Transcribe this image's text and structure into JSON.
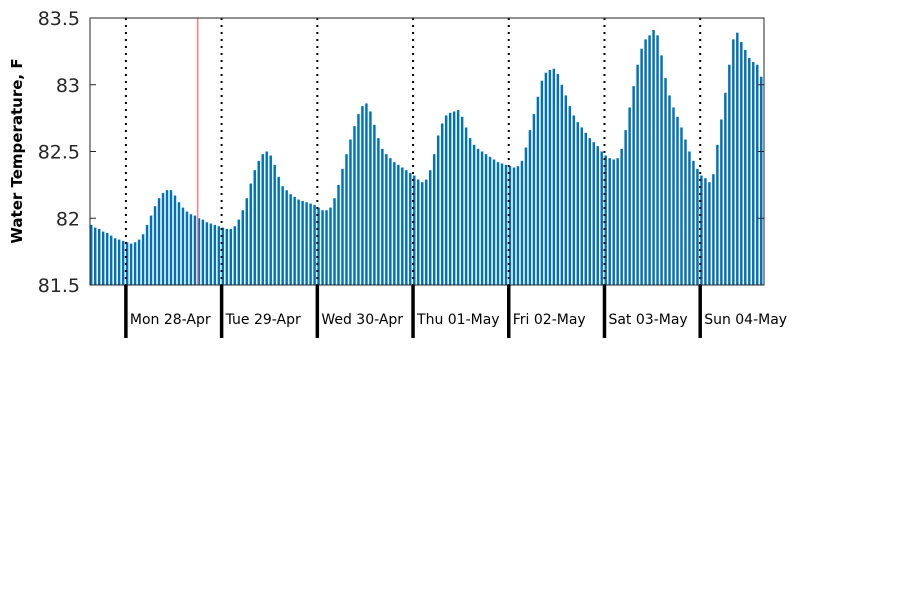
{
  "chart_data": {
    "type": "bar",
    "title": "",
    "xlabel": "",
    "ylabel": "Water Temperature, F",
    "ylim": [
      81.5,
      83.5
    ],
    "yticks": [
      "81.5",
      "82",
      "82.5",
      "83",
      "83.5"
    ],
    "day_labels": [
      "Mon 28-Apr",
      "Tue 29-Apr",
      "Wed 30-Apr",
      "Thu 01-May",
      "Fri 02-May",
      "Sat 03-May",
      "Sun 04-May"
    ],
    "bar_color": "#0072bd",
    "current_marker_color": "#ff7f7f",
    "current_marker_hours_after_start": 27,
    "start_hour": 15,
    "hours_per_day": 24,
    "series": [
      {
        "values": [
          81.95,
          81.93,
          81.92,
          81.9,
          81.89,
          81.87,
          81.85,
          81.84,
          81.83,
          81.82,
          81.81,
          81.82,
          81.84,
          81.88,
          81.95,
          82.02,
          82.09,
          82.15,
          82.19,
          82.21,
          82.21,
          82.17,
          82.12,
          82.08,
          82.05,
          82.03,
          82.02,
          82.0,
          81.99,
          81.97,
          81.96,
          81.95,
          81.94,
          81.93,
          81.92,
          81.92,
          81.94,
          81.99,
          82.06,
          82.15,
          82.26,
          82.36,
          82.43,
          82.48,
          82.5,
          82.47,
          82.4,
          82.31,
          82.24,
          82.21,
          82.18,
          82.16,
          82.14,
          82.13,
          82.12,
          82.11,
          82.1,
          82.08,
          82.06,
          82.06,
          82.08,
          82.15,
          82.25,
          82.37,
          82.48,
          82.59,
          82.69,
          82.78,
          82.84,
          82.86,
          82.8,
          82.7,
          82.6,
          82.52,
          82.48,
          82.45,
          82.42,
          82.4,
          82.38,
          82.36,
          82.34,
          82.32,
          82.29,
          82.27,
          82.29,
          82.36,
          82.48,
          82.62,
          82.71,
          82.77,
          82.79,
          82.8,
          82.81,
          82.76,
          82.68,
          82.6,
          82.55,
          82.52,
          82.5,
          82.48,
          82.46,
          82.44,
          82.42,
          82.41,
          82.4,
          82.39,
          82.38,
          82.39,
          82.43,
          82.53,
          82.66,
          82.78,
          82.91,
          83.03,
          83.09,
          83.11,
          83.12,
          83.08,
          83.0,
          82.92,
          82.84,
          82.77,
          82.72,
          82.68,
          82.64,
          82.6,
          82.57,
          82.54,
          82.5,
          82.47,
          82.45,
          82.44,
          82.45,
          82.52,
          82.66,
          82.83,
          82.99,
          83.15,
          83.27,
          83.34,
          83.37,
          83.41,
          83.37,
          83.22,
          83.05,
          82.92,
          82.83,
          82.76,
          82.68,
          82.59,
          82.5,
          82.43,
          82.37,
          82.32,
          82.3,
          82.27,
          82.33,
          82.55,
          82.74,
          82.94,
          83.15,
          83.34,
          83.39,
          83.32,
          83.26,
          83.2,
          83.17,
          83.15,
          83.06
        ]
      }
    ]
  }
}
